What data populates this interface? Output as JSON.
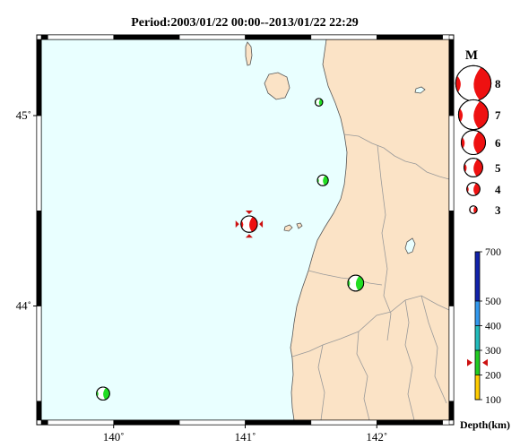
{
  "title": "Period:2003/01/22 00:00--2013/01/22 22:29",
  "map": {
    "lon_range": [
      139.45,
      142.55
    ],
    "lat_range": [
      43.4,
      45.4
    ],
    "colors": {
      "sea": "#e9ffff",
      "land": "#fbe3c6",
      "coast": "#555555",
      "border": "#999999",
      "frame": "#000000"
    },
    "lon_ticks": [
      {
        "value": 140,
        "label": "140˚"
      },
      {
        "value": 141,
        "label": "141˚"
      },
      {
        "value": 142,
        "label": "142˚"
      }
    ],
    "lat_ticks": [
      {
        "value": 45,
        "label": "45˚"
      },
      {
        "value": 44,
        "label": "44˚"
      }
    ]
  },
  "events": [
    {
      "lon": 141.03,
      "lat": 44.43,
      "mag": 4.6,
      "depth": 250,
      "color": "#ee1111",
      "selected": true
    },
    {
      "lon": 141.56,
      "lat": 45.07,
      "mag": 3.0,
      "depth": 230,
      "color": "#22dd22"
    },
    {
      "lon": 141.59,
      "lat": 44.66,
      "mag": 3.6,
      "depth": 260,
      "color": "#22dd22"
    },
    {
      "lon": 141.84,
      "lat": 44.12,
      "mag": 4.5,
      "depth": 270,
      "color": "#22dd22"
    },
    {
      "lon": 139.92,
      "lat": 43.54,
      "mag": 4.0,
      "depth": 240,
      "color": "#22dd22"
    }
  ],
  "mag_legend": {
    "heading": "M",
    "items": [
      {
        "mag": 8,
        "label": "8"
      },
      {
        "mag": 7,
        "label": "7"
      },
      {
        "mag": 6,
        "label": "6"
      },
      {
        "mag": 5,
        "label": "5"
      },
      {
        "mag": 4,
        "label": "4"
      },
      {
        "mag": 3,
        "label": "3"
      }
    ],
    "color": "#ee1111"
  },
  "depth_scale": {
    "label": "Depth(km)",
    "range": [
      100,
      700
    ],
    "ticks": [
      {
        "value": 700,
        "label": "700"
      },
      {
        "value": 500,
        "label": "500"
      },
      {
        "value": 400,
        "label": "400"
      },
      {
        "value": 300,
        "label": "300"
      },
      {
        "value": 200,
        "label": "200"
      },
      {
        "value": 100,
        "label": "100"
      }
    ],
    "bands": [
      {
        "from": 100,
        "to": 200,
        "color": "#ffcc00"
      },
      {
        "from": 200,
        "to": 300,
        "color": "#22cc22"
      },
      {
        "from": 300,
        "to": 400,
        "color": "#22bbbb"
      },
      {
        "from": 400,
        "to": 500,
        "color": "#3399ee"
      },
      {
        "from": 500,
        "to": 700,
        "color": "#1122aa"
      }
    ],
    "marker_depth": 250
  }
}
